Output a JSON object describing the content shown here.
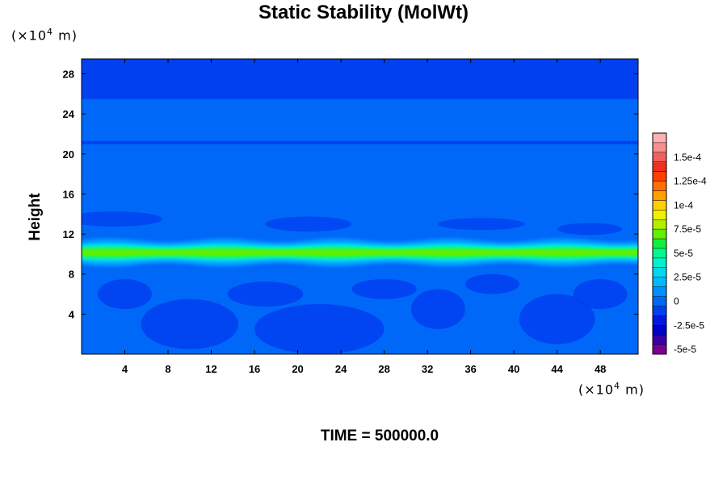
{
  "chart_data": {
    "type": "heatmap",
    "title": "Static Stability (MolWt)",
    "ylabel": "Height",
    "xlabel": "",
    "y_unit": {
      "prefix": "(×10",
      "exp": "4",
      "suffix": " m)"
    },
    "x_unit": {
      "prefix": "(×10",
      "exp": "4",
      "suffix": " m)"
    },
    "xlim": [
      0,
      51.5
    ],
    "ylim": [
      0,
      29.5
    ],
    "x_ticks": [
      "4",
      "8",
      "12",
      "16",
      "20",
      "24",
      "28",
      "32",
      "36",
      "40",
      "44",
      "48"
    ],
    "x_tick_values": [
      4,
      8,
      12,
      16,
      20,
      24,
      28,
      32,
      36,
      40,
      44,
      48
    ],
    "y_ticks": [
      "4",
      "8",
      "12",
      "16",
      "20",
      "24",
      "28"
    ],
    "y_tick_values": [
      4,
      8,
      12,
      16,
      20,
      24,
      28
    ],
    "colorbar": {
      "labels": [
        "1.5e-4",
        "1.25e-4",
        "1e-4",
        "7.5e-5",
        "5e-5",
        "2.5e-5",
        "0",
        "-2.5e-5",
        "-5e-5"
      ],
      "label_values": [
        0.00015,
        0.000125,
        0.0001,
        7.5e-05,
        5e-05,
        2.5e-05,
        0,
        -2.5e-05,
        -5e-05
      ],
      "min": -5.5e-05,
      "max": 0.000175,
      "colors": [
        "#7a0090",
        "#3a00a8",
        "#0000c8",
        "#0018e0",
        "#0040f0",
        "#0068f8",
        "#0090ff",
        "#00b8ff",
        "#00d8f0",
        "#00f0d0",
        "#00f890",
        "#10f040",
        "#60f000",
        "#b0f000",
        "#f0f000",
        "#ffd000",
        "#ffa000",
        "#ff7000",
        "#ff4000",
        "#f03020",
        "#f06060",
        "#f89090",
        "#ffb0b0"
      ]
    },
    "field_summary": {
      "background_value": 0,
      "stratosphere_layer": {
        "y_range": [
          25.5,
          29.5
        ],
        "value": -1.2e-05
      },
      "upper_layer": {
        "y_range": [
          21,
          25.5
        ],
        "value": 1e-06
      },
      "max_band": {
        "y_center": 10,
        "peak_value": 7e-05
      }
    }
  },
  "time_label": "TIME = 500000.0"
}
